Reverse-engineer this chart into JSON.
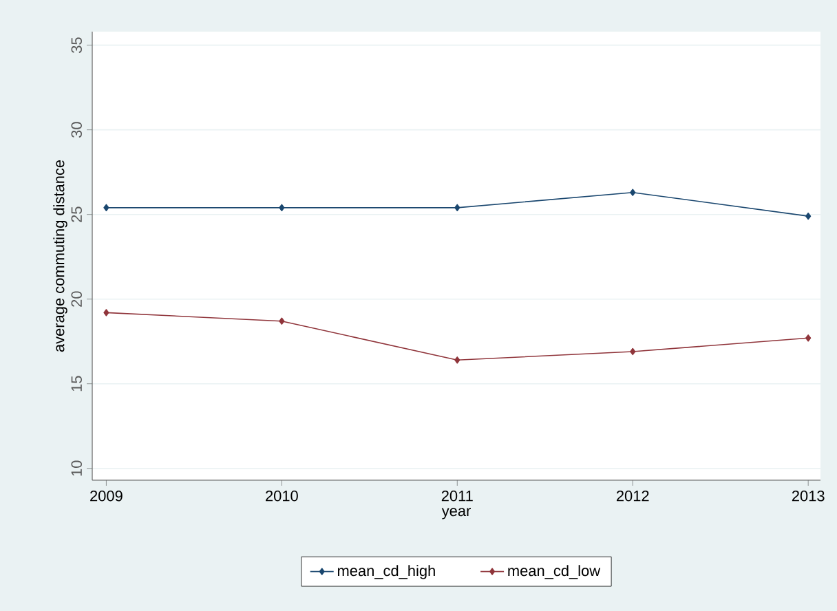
{
  "chart_data": {
    "type": "line",
    "xlabel": "year",
    "ylabel": "average commuting distance",
    "x": [
      2009,
      2010,
      2011,
      2012,
      2013
    ],
    "xlim": [
      2008.92,
      2013.07
    ],
    "xticks": [
      2009,
      2010,
      2011,
      2012,
      2013
    ],
    "ylim": [
      9.3,
      35.8
    ],
    "yticks": [
      10,
      15,
      20,
      25,
      30,
      35
    ],
    "grid": "y",
    "legend": "bottom",
    "marker": "diamond",
    "line_style": "solid",
    "series": [
      {
        "name": "mean_cd_high",
        "color": "#1a476f",
        "values": [
          25.4,
          25.4,
          25.4,
          26.3,
          24.9
        ]
      },
      {
        "name": "mean_cd_low",
        "color": "#90353b",
        "values": [
          19.2,
          18.7,
          16.4,
          16.9,
          17.7
        ]
      }
    ]
  }
}
